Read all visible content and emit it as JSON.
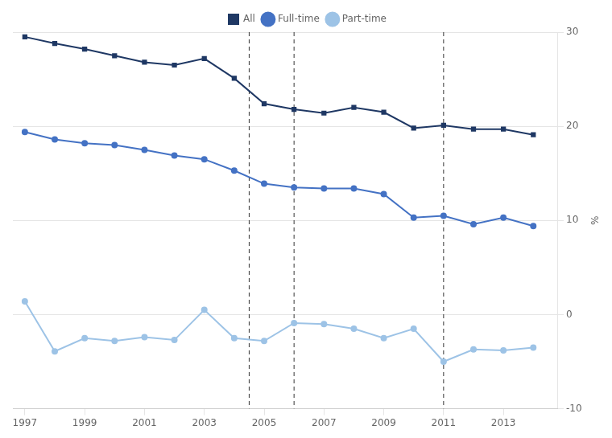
{
  "chart_data": {
    "type": "line",
    "x": [
      1997,
      1998,
      1999,
      2000,
      2001,
      2002,
      2003,
      2004,
      2005,
      2006,
      2007,
      2008,
      2009,
      2010,
      2011,
      2012,
      2013,
      2014
    ],
    "series": [
      {
        "name": "All",
        "color": "#1f3864",
        "marker": "square",
        "values": [
          29.5,
          28.8,
          28.2,
          27.5,
          26.8,
          26.5,
          27.2,
          25.1,
          22.4,
          21.8,
          21.4,
          22.0,
          21.5,
          19.8,
          20.1,
          19.7,
          19.7,
          19.1
        ]
      },
      {
        "name": "Full-time",
        "color": "#4472c4",
        "marker": "circle",
        "values": [
          19.4,
          18.6,
          18.2,
          18.0,
          17.5,
          16.9,
          16.5,
          15.3,
          13.9,
          13.5,
          13.4,
          13.4,
          12.8,
          10.3,
          10.5,
          9.6,
          10.3,
          9.4
        ]
      },
      {
        "name": "Part-time",
        "color": "#9dc3e6",
        "marker": "circle",
        "values": [
          1.4,
          -3.9,
          -2.5,
          -2.8,
          -2.4,
          -2.7,
          0.5,
          -2.5,
          -2.8,
          -0.9,
          -1.0,
          -1.5,
          -2.5,
          -1.5,
          -5.0,
          -3.7,
          -3.8,
          -3.5
        ]
      }
    ],
    "vlines": [
      2004.5,
      2006.0,
      2011.0
    ],
    "ylabel": "%",
    "xlim": [
      1996.6,
      2014.8
    ],
    "xticks": [
      1997,
      1999,
      2001,
      2003,
      2005,
      2007,
      2009,
      2011,
      2013
    ],
    "ylim": [
      -10,
      30
    ],
    "yticks": [
      -10,
      0,
      10,
      20,
      30
    ],
    "grid": true,
    "legend": "top"
  }
}
